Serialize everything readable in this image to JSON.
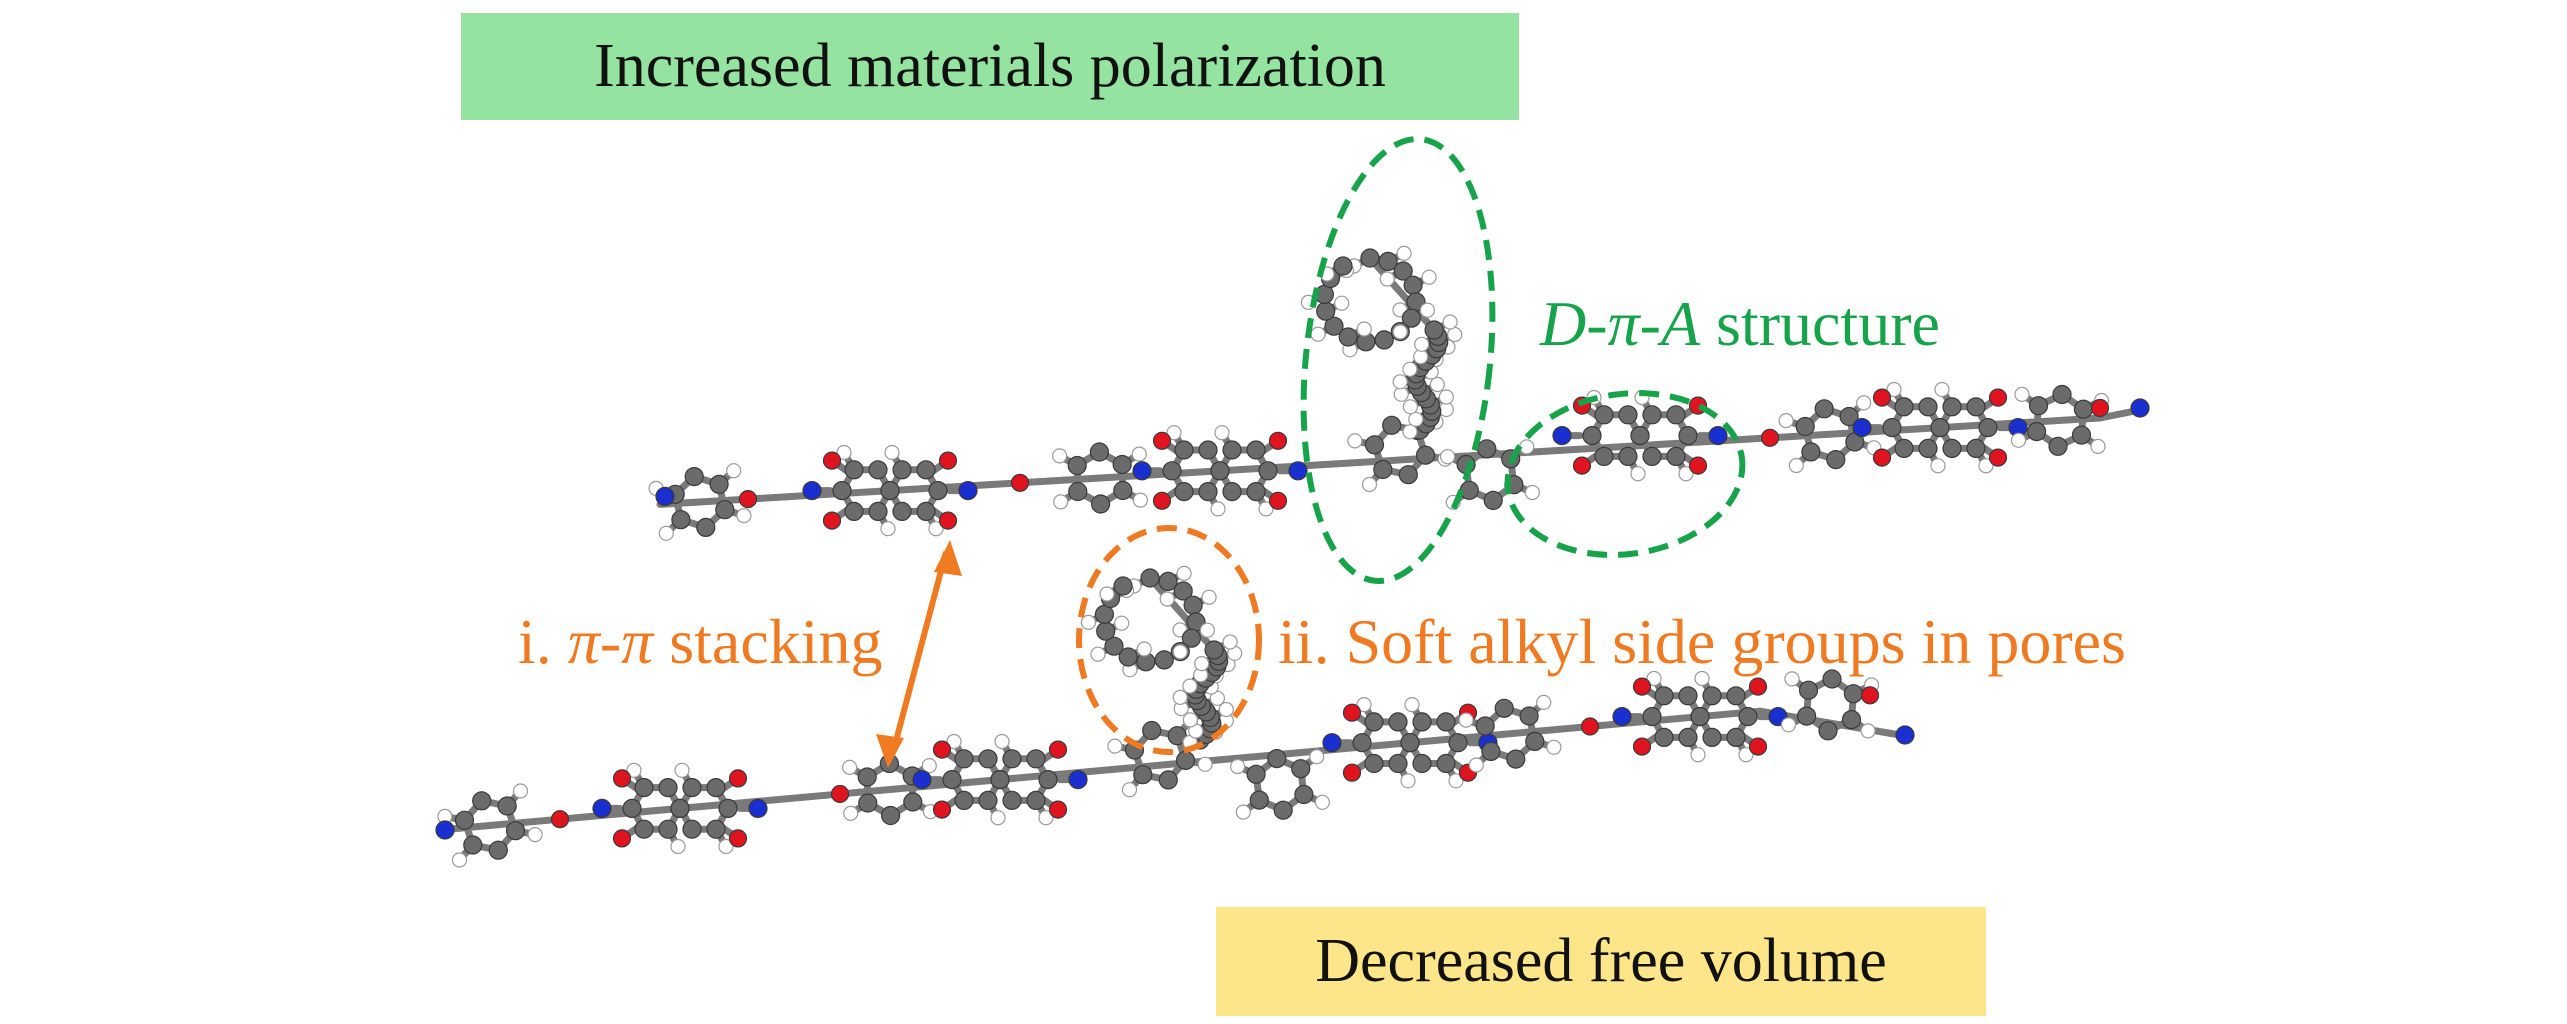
{
  "colors": {
    "top_box_fill": "#94e3a1",
    "bottom_box_fill": "#fde68a",
    "green_annotation": "#16a34a",
    "orange_annotation": "#f07a22",
    "carbon": "#6b6b6b",
    "hydrogen": "#ffffff",
    "oxygen": "#e0141e",
    "nitrogen": "#1a2fd0"
  },
  "boxes": {
    "top": "Increased materials polarization",
    "bottom": "Decreased free volume"
  },
  "labels": {
    "dpa": {
      "italic": "D-π-A",
      "rest": " structure"
    },
    "pi_stacking": {
      "prefix": "i. ",
      "italic": "π-π",
      "rest": " stacking"
    },
    "alkyl": "ii. Soft alkyl side groups in pores"
  }
}
